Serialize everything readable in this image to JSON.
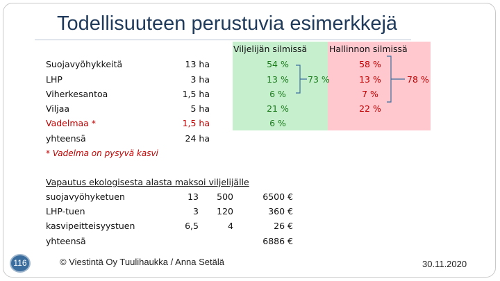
{
  "slide": {
    "title": "Todellisuuteen perustuvia esimerkkejä",
    "page_number": "116",
    "footer_credit": "© Viestintä Oy Tuulihaukka / Anna Setälä",
    "date": "30.11.2020"
  },
  "colors": {
    "title": "#1f3a5a",
    "farmer_box": "#c6efce",
    "admin_box": "#ffc7ce",
    "red_text": "#c00000",
    "green_text": "#1a7a1a"
  },
  "areas": {
    "rows": [
      {
        "name": "Suojavyöhykkeitä",
        "ha": "13 ha",
        "farmer": "54 %",
        "admin": "58 %"
      },
      {
        "name": "LHP",
        "ha": "3 ha",
        "farmer": "13 %",
        "admin": "13 %"
      },
      {
        "name": "Viherkesantoa",
        "ha": "1,5 ha",
        "farmer": "6 %",
        "admin": "7 %"
      },
      {
        "name": "Viljaa",
        "ha": "5 ha",
        "farmer": "21 %",
        "admin": "22 %"
      },
      {
        "name": "Vadelmaa *",
        "ha": "1,5 ha",
        "farmer": "6 %",
        "admin": ""
      },
      {
        "name": "yhteensä",
        "ha": "24 ha",
        "farmer": "",
        "admin": ""
      }
    ],
    "footnote": "* Vadelma on pysyvä kasvi",
    "farmer_header": "Viljelijän silmissä",
    "admin_header": "Hallinnon silmissä",
    "farmer_sum": "73 %",
    "admin_sum": "78 %"
  },
  "payments": {
    "heading": "Vapautus ekologisesta alasta maksoi viljelijälle",
    "rows": [
      {
        "label": "suojavyöhyketuen",
        "ha": "13",
        "rate": "500",
        "total": "6500 €"
      },
      {
        "label": "LHP-tuen",
        "ha": "3",
        "rate": "120",
        "total": "360 €"
      },
      {
        "label": "kasvipeitteisyystuen",
        "ha": "6,5",
        "rate": "4",
        "total": "26 €"
      },
      {
        "label": "yhteensä",
        "ha": "",
        "rate": "",
        "total": "6886 €"
      }
    ]
  }
}
